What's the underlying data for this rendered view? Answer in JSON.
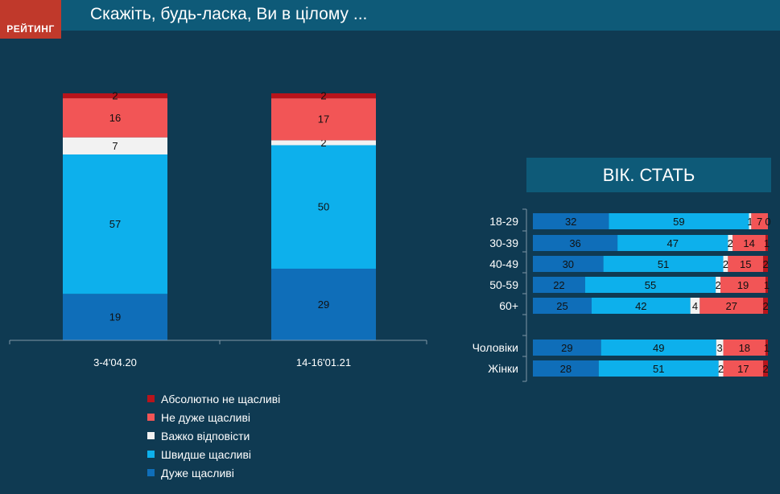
{
  "header": {
    "logo": "РЕЙТИНГ",
    "title": "Скажіть, будь-ласка, Ви в цілому ..."
  },
  "right_panel": {
    "title": "ВІК. СТАТЬ"
  },
  "colors": {
    "very_happy": "#0f6eb9",
    "rather_happy": "#0db0ec",
    "hard_to_say": "#f2f2f2",
    "not_very_happy": "#f25556",
    "not_at_all_happy": "#b8141b"
  },
  "legend": [
    {
      "label": "Абсолютно не щасливі",
      "color": "#b8141b"
    },
    {
      "label": "Не дуже щасливі",
      "color": "#f25556"
    },
    {
      "label": "Важко відповісти",
      "color": "#f2f2f2"
    },
    {
      "label": "Швидше щасливі",
      "color": "#0db0ec"
    },
    {
      "label": "Дуже щасливі",
      "color": "#0f6eb9"
    }
  ],
  "chart_data": [
    {
      "type": "bar",
      "stacked": true,
      "orientation": "vertical",
      "categories": [
        "3-4'04.20",
        "14-16'01.21"
      ],
      "series": [
        {
          "name": "Дуже щасливі",
          "values": [
            19,
            29
          ]
        },
        {
          "name": "Швидше щасливі",
          "values": [
            57,
            50
          ]
        },
        {
          "name": "Важко відповісти",
          "values": [
            7,
            2
          ]
        },
        {
          "name": "Не дуже щасливі",
          "values": [
            16,
            17
          ]
        },
        {
          "name": "Абсолютно не щасливі",
          "values": [
            2,
            2
          ]
        }
      ]
    },
    {
      "type": "bar",
      "stacked": true,
      "orientation": "horizontal",
      "categories": [
        "18-29",
        "30-39",
        "40-49",
        "50-59",
        "60+",
        "Чоловіки",
        "Жінки"
      ],
      "series": [
        {
          "name": "Дуже щасливі",
          "values": [
            32,
            36,
            30,
            22,
            25,
            29,
            28
          ]
        },
        {
          "name": "Швидше щасливі",
          "values": [
            59,
            47,
            51,
            55,
            42,
            49,
            51
          ]
        },
        {
          "name": "Важко відповісти",
          "values": [
            1,
            2,
            2,
            2,
            4,
            3,
            2
          ]
        },
        {
          "name": "Не дуже щасливі",
          "values": [
            7,
            14,
            15,
            19,
            27,
            18,
            17
          ]
        },
        {
          "name": "Абсолютно не щасливі",
          "values": [
            0,
            1,
            2,
            1,
            2,
            1,
            2
          ]
        }
      ]
    }
  ]
}
